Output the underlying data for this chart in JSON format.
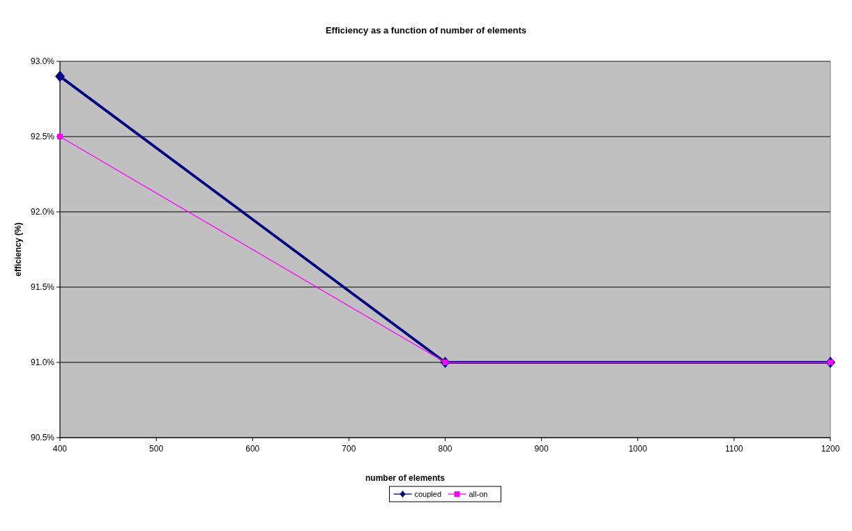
{
  "chart_data": {
    "type": "line",
    "title": "Efficiency as a function of number of elements",
    "xlabel": "number of elements",
    "ylabel": "efficiency (%)",
    "x": [
      400,
      800,
      1200
    ],
    "series": [
      {
        "name": "coupled",
        "color": "#000080",
        "values": [
          92.9,
          91.0,
          91.0
        ],
        "marker": "diamond"
      },
      {
        "name": "all-on",
        "color": "#ff00ff",
        "values": [
          92.5,
          91.0,
          91.0
        ],
        "marker": "square"
      }
    ],
    "xlim": [
      400,
      1200
    ],
    "xticks": [
      400,
      500,
      600,
      700,
      800,
      900,
      1000,
      1100,
      1200
    ],
    "ylim": [
      90.5,
      93.0
    ],
    "yticks": [
      {
        "value": 90.5,
        "label": "90.5%"
      },
      {
        "value": 91.0,
        "label": "91.0%"
      },
      {
        "value": 91.5,
        "label": "91.5%"
      },
      {
        "value": 92.0,
        "label": "92.0%"
      },
      {
        "value": 92.5,
        "label": "92.5%"
      },
      {
        "value": 93.0,
        "label": "93.0%"
      }
    ],
    "grid": "y",
    "legend": "bottom"
  }
}
